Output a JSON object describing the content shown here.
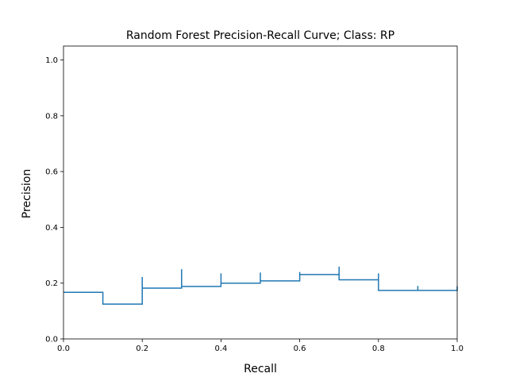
{
  "chart_data": {
    "type": "line",
    "step": "post",
    "title": "Random Forest Precision-Recall Curve; Class: RP",
    "xlabel": "Recall",
    "ylabel": "Precision",
    "xlim": [
      0.0,
      1.0
    ],
    "ylim": [
      0.0,
      1.05
    ],
    "xticks": [
      "0.0",
      "0.2",
      "0.4",
      "0.6",
      "0.8",
      "1.0"
    ],
    "yticks": [
      "0.0",
      "0.2",
      "0.4",
      "0.6",
      "0.8",
      "1.0"
    ],
    "grid": false,
    "color": "#1f77b4",
    "series": [
      {
        "x": [
          0.0,
          0.1,
          0.1,
          0.2,
          0.2,
          0.3,
          0.3,
          0.4,
          0.4,
          0.5,
          0.5,
          0.6,
          0.6,
          0.7,
          0.7,
          0.8,
          0.8,
          0.9,
          0.9,
          1.0
        ],
        "y": [
          0.167,
          0.167,
          0.125,
          0.222,
          0.182,
          0.25,
          0.188,
          0.235,
          0.2,
          0.238,
          0.208,
          0.24,
          0.231,
          0.259,
          0.212,
          0.235,
          0.174,
          0.19,
          0.174,
          0.189
        ]
      }
    ]
  }
}
